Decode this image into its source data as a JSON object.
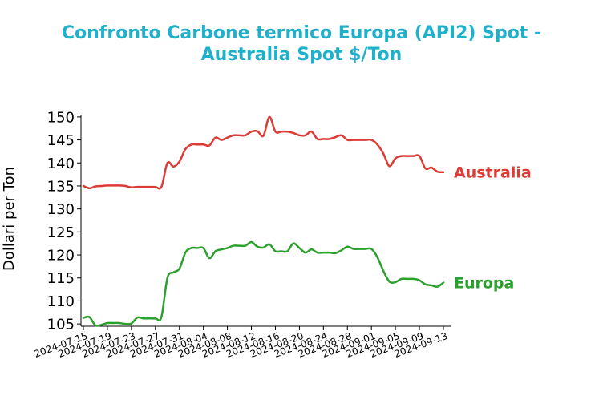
{
  "chart_data": {
    "type": "line",
    "title_line1": "Confronto Carbone termico Europa (API2) Spot -",
    "title_line2": "Australia Spot $/Ton",
    "title_color": "#1fb0cc",
    "xlabel": "",
    "ylabel": "Dollari per Ton",
    "ylim": [
      104.5,
      150.5
    ],
    "yticks": [
      105,
      110,
      115,
      120,
      125,
      130,
      135,
      140,
      145,
      150
    ],
    "xlim": [
      "2024-07-15",
      "2024-09-13"
    ],
    "xticks": [
      "2024-07-15",
      "2024-07-19",
      "2024-07-23",
      "2024-07-27",
      "2024-07-31",
      "2024-08-04",
      "2024-08-08",
      "2024-08-12",
      "2024-08-16",
      "2024-08-20",
      "2024-08-24",
      "2024-08-28",
      "2024-09-01",
      "2024-09-05",
      "2024-09-09",
      "2024-09-13"
    ],
    "grid": false,
    "legend": "none (series labels at right end of lines)",
    "series": [
      {
        "name": "Australia",
        "color": "#dd3b35",
        "points": [
          [
            "2024-07-15",
            135.0
          ],
          [
            "2024-07-16",
            134.5
          ],
          [
            "2024-07-17",
            134.9
          ],
          [
            "2024-07-18",
            135.0
          ],
          [
            "2024-07-19",
            135.1
          ],
          [
            "2024-07-20",
            135.1
          ],
          [
            "2024-07-21",
            135.1
          ],
          [
            "2024-07-22",
            135.0
          ],
          [
            "2024-07-23",
            134.7
          ],
          [
            "2024-07-24",
            134.8
          ],
          [
            "2024-07-25",
            134.8
          ],
          [
            "2024-07-26",
            134.8
          ],
          [
            "2024-07-27",
            134.8
          ],
          [
            "2024-07-28",
            134.8
          ],
          [
            "2024-07-29",
            140.0
          ],
          [
            "2024-07-30",
            139.2
          ],
          [
            "2024-07-31",
            140.3
          ],
          [
            "2024-08-01",
            143.0
          ],
          [
            "2024-08-02",
            144.0
          ],
          [
            "2024-08-03",
            144.0
          ],
          [
            "2024-08-04",
            144.0
          ],
          [
            "2024-08-05",
            143.8
          ],
          [
            "2024-08-06",
            145.5
          ],
          [
            "2024-08-07",
            145.0
          ],
          [
            "2024-08-08",
            145.5
          ],
          [
            "2024-08-09",
            146.0
          ],
          [
            "2024-08-10",
            146.0
          ],
          [
            "2024-08-11",
            146.0
          ],
          [
            "2024-08-12",
            146.8
          ],
          [
            "2024-08-13",
            146.9
          ],
          [
            "2024-08-14",
            145.9
          ],
          [
            "2024-08-15",
            150.0
          ],
          [
            "2024-08-16",
            146.8
          ],
          [
            "2024-08-17",
            146.8
          ],
          [
            "2024-08-18",
            146.8
          ],
          [
            "2024-08-19",
            146.5
          ],
          [
            "2024-08-20",
            146.0
          ],
          [
            "2024-08-21",
            146.0
          ],
          [
            "2024-08-22",
            146.8
          ],
          [
            "2024-08-23",
            145.2
          ],
          [
            "2024-08-24",
            145.2
          ],
          [
            "2024-08-25",
            145.2
          ],
          [
            "2024-08-26",
            145.6
          ],
          [
            "2024-08-27",
            146.0
          ],
          [
            "2024-08-28",
            145.0
          ],
          [
            "2024-08-29",
            145.0
          ],
          [
            "2024-08-30",
            145.0
          ],
          [
            "2024-08-31",
            145.0
          ],
          [
            "2024-09-01",
            145.0
          ],
          [
            "2024-09-02",
            144.0
          ],
          [
            "2024-09-03",
            142.0
          ],
          [
            "2024-09-04",
            139.3
          ],
          [
            "2024-09-05",
            141.0
          ],
          [
            "2024-09-06",
            141.5
          ],
          [
            "2024-09-07",
            141.5
          ],
          [
            "2024-09-08",
            141.5
          ],
          [
            "2024-09-09",
            141.5
          ],
          [
            "2024-09-10",
            138.8
          ],
          [
            "2024-09-11",
            139.0
          ],
          [
            "2024-09-12",
            138.1
          ],
          [
            "2024-09-13",
            138.0
          ]
        ]
      },
      {
        "name": "Europa",
        "color": "#2ca02c",
        "points": [
          [
            "2024-07-15",
            106.3
          ],
          [
            "2024-07-16",
            106.5
          ],
          [
            "2024-07-17",
            104.7
          ],
          [
            "2024-07-18",
            104.8
          ],
          [
            "2024-07-19",
            105.2
          ],
          [
            "2024-07-20",
            105.2
          ],
          [
            "2024-07-21",
            105.2
          ],
          [
            "2024-07-22",
            105.0
          ],
          [
            "2024-07-23",
            105.1
          ],
          [
            "2024-07-24",
            106.4
          ],
          [
            "2024-07-25",
            106.2
          ],
          [
            "2024-07-26",
            106.2
          ],
          [
            "2024-07-27",
            106.2
          ],
          [
            "2024-07-28",
            106.5
          ],
          [
            "2024-07-29",
            115.0
          ],
          [
            "2024-07-30",
            116.2
          ],
          [
            "2024-07-31",
            117.0
          ],
          [
            "2024-08-01",
            120.5
          ],
          [
            "2024-08-02",
            121.5
          ],
          [
            "2024-08-03",
            121.5
          ],
          [
            "2024-08-04",
            121.5
          ],
          [
            "2024-08-05",
            119.3
          ],
          [
            "2024-08-06",
            120.8
          ],
          [
            "2024-08-07",
            121.2
          ],
          [
            "2024-08-08",
            121.5
          ],
          [
            "2024-08-09",
            122.0
          ],
          [
            "2024-08-10",
            122.0
          ],
          [
            "2024-08-11",
            122.0
          ],
          [
            "2024-08-12",
            122.8
          ],
          [
            "2024-08-13",
            121.8
          ],
          [
            "2024-08-14",
            121.6
          ],
          [
            "2024-08-15",
            122.3
          ],
          [
            "2024-08-16",
            120.8
          ],
          [
            "2024-08-17",
            120.8
          ],
          [
            "2024-08-18",
            120.8
          ],
          [
            "2024-08-19",
            122.5
          ],
          [
            "2024-08-20",
            121.5
          ],
          [
            "2024-08-21",
            120.5
          ],
          [
            "2024-08-22",
            121.2
          ],
          [
            "2024-08-23",
            120.5
          ],
          [
            "2024-08-24",
            120.5
          ],
          [
            "2024-08-25",
            120.5
          ],
          [
            "2024-08-26",
            120.4
          ],
          [
            "2024-08-27",
            121.0
          ],
          [
            "2024-08-28",
            121.8
          ],
          [
            "2024-08-29",
            121.3
          ],
          [
            "2024-08-30",
            121.3
          ],
          [
            "2024-08-31",
            121.3
          ],
          [
            "2024-09-01",
            121.3
          ],
          [
            "2024-09-02",
            119.5
          ],
          [
            "2024-09-03",
            116.5
          ],
          [
            "2024-09-04",
            114.2
          ],
          [
            "2024-09-05",
            114.1
          ],
          [
            "2024-09-06",
            114.8
          ],
          [
            "2024-09-07",
            114.8
          ],
          [
            "2024-09-08",
            114.8
          ],
          [
            "2024-09-09",
            114.5
          ],
          [
            "2024-09-10",
            113.6
          ],
          [
            "2024-09-11",
            113.4
          ],
          [
            "2024-09-12",
            113.1
          ],
          [
            "2024-09-13",
            114.0
          ]
        ]
      }
    ]
  }
}
